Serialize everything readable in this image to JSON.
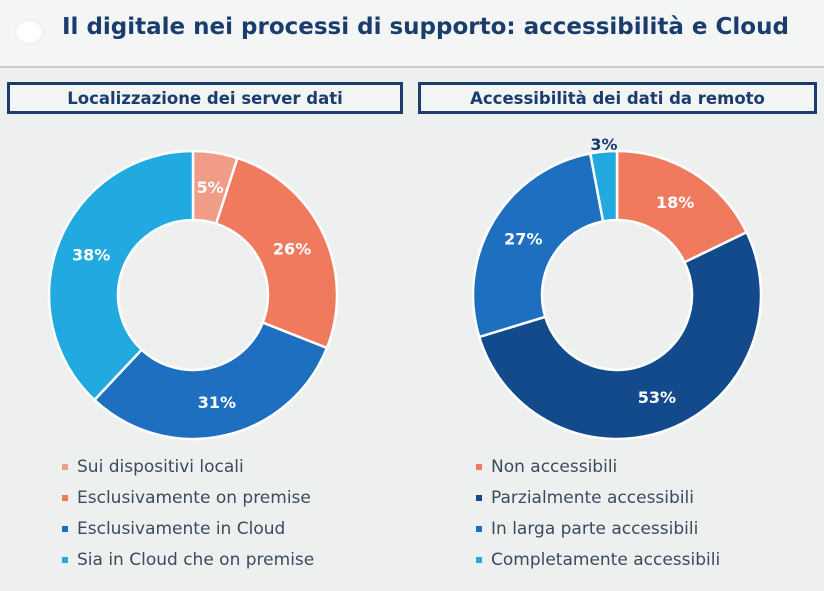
{
  "header": {
    "title": "Il digitale nei processi di supporto: accessibilità e Cloud"
  },
  "colors": {
    "title": "#1b3d6e",
    "panel_border": "#1b3d6e",
    "salmon_light": "#f09c86",
    "salmon": "#f07a5e",
    "blue_mid": "#1f6fc1",
    "blue_light": "#22a9e0",
    "blue_dark": "#134a8c"
  },
  "chart_data": [
    {
      "type": "pie",
      "title": "Localizzazione dei server dati",
      "donut": true,
      "categories": [
        "Sui dispositivi locali",
        "Esclusivamente on premise",
        "Esclusivamente in Cloud",
        "Sia in Cloud che on premise"
      ],
      "values": [
        5,
        26,
        31,
        38
      ],
      "labels": [
        "5%",
        "26%",
        "31%",
        "38%"
      ],
      "colors": [
        "#f09c86",
        "#f07a5e",
        "#1f6fc1",
        "#22a9e0"
      ],
      "legend_position": "bottom"
    },
    {
      "type": "pie",
      "title": "Accessibilità dei dati da remoto",
      "donut": true,
      "categories": [
        "Non accessibili",
        "Parzialmente accessibili",
        "In larga parte accessibili",
        "Completamente accessibili"
      ],
      "values": [
        18,
        53,
        27,
        3
      ],
      "labels": [
        "18%",
        "53%",
        "27%",
        "3%"
      ],
      "colors": [
        "#f07a5e",
        "#134a8c",
        "#1f6fc1",
        "#22a9e0"
      ],
      "legend_position": "bottom"
    }
  ]
}
